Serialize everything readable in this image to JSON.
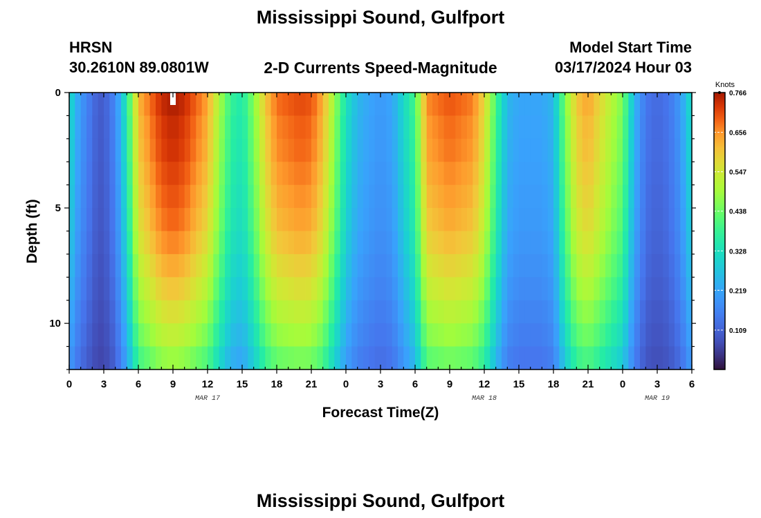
{
  "header": {
    "title": "Mississippi Sound, Gulfport",
    "station_code": "HRSN",
    "coordinates": "30.2610N  89.0801W",
    "subtitle": "2-D Currents Speed-Magnitude",
    "model_label": "Model Start Time",
    "model_time": "03/17/2024 Hour 03"
  },
  "footer": {
    "title": "Mississippi Sound, Gulfport"
  },
  "chart_data": {
    "type": "heatmap",
    "title": "2-D Currents Speed-Magnitude",
    "xlabel": "Forecast Time(Z)",
    "ylabel": "Depth (ft)",
    "x_range_hours": [
      0,
      54
    ],
    "y_range_ft": [
      0,
      12
    ],
    "y_inverted": true,
    "x_ticks": [
      "0",
      "3",
      "6",
      "9",
      "12",
      "15",
      "18",
      "21",
      "0",
      "3",
      "6",
      "9",
      "12",
      "15",
      "18",
      "21",
      "0",
      "3",
      "6"
    ],
    "y_ticks": [
      {
        "value": 0,
        "label": "0"
      },
      {
        "value": 5,
        "label": "5"
      },
      {
        "value": 10,
        "label": "10"
      }
    ],
    "day_labels": [
      {
        "hour": 12,
        "label": "MAR 17"
      },
      {
        "hour": 36,
        "label": "MAR 18"
      },
      {
        "hour": 51,
        "label": "MAR 19"
      }
    ],
    "now_marker_hour": 9,
    "colorbar": {
      "unit": "Knots",
      "min": 0.0,
      "max": 0.766,
      "tick_labels": [
        "0.766",
        "0.656",
        "0.547",
        "0.438",
        "0.328",
        "0.219",
        "0.109"
      ],
      "tick_values": [
        0.766,
        0.656,
        0.547,
        0.438,
        0.328,
        0.219,
        0.109
      ]
    },
    "depth_levels_ft": [
      0.5,
      1.5,
      2.5,
      3.5,
      4.5,
      5.5,
      6.5,
      7.5,
      8.5,
      9.5,
      10.5,
      11.5
    ],
    "surface_speed_profile": {
      "hours": [
        0,
        0.5,
        1,
        2,
        2.5,
        3,
        4,
        5,
        6,
        8,
        9,
        10,
        12,
        13,
        14,
        15,
        16,
        17,
        18,
        20,
        21,
        22,
        23,
        24,
        25,
        26,
        27,
        28,
        30,
        31,
        33,
        35,
        36,
        37,
        38,
        39,
        40,
        41,
        42,
        43,
        44,
        45,
        46,
        48,
        49,
        50,
        51,
        52,
        53,
        54
      ],
      "speeds": [
        0.33,
        0.25,
        0.2,
        0.13,
        0.1,
        0.1,
        0.17,
        0.35,
        0.62,
        0.74,
        0.76,
        0.74,
        0.64,
        0.5,
        0.38,
        0.35,
        0.46,
        0.6,
        0.68,
        0.71,
        0.7,
        0.63,
        0.48,
        0.33,
        0.25,
        0.22,
        0.2,
        0.22,
        0.4,
        0.66,
        0.7,
        0.67,
        0.58,
        0.4,
        0.25,
        0.22,
        0.22,
        0.22,
        0.25,
        0.45,
        0.6,
        0.64,
        0.58,
        0.45,
        0.25,
        0.14,
        0.12,
        0.14,
        0.2,
        0.33
      ]
    },
    "depth_speed_factor": [
      1.0,
      0.98,
      0.97,
      0.95,
      0.93,
      0.91,
      0.88,
      0.84,
      0.8,
      0.75,
      0.7,
      0.64
    ]
  }
}
